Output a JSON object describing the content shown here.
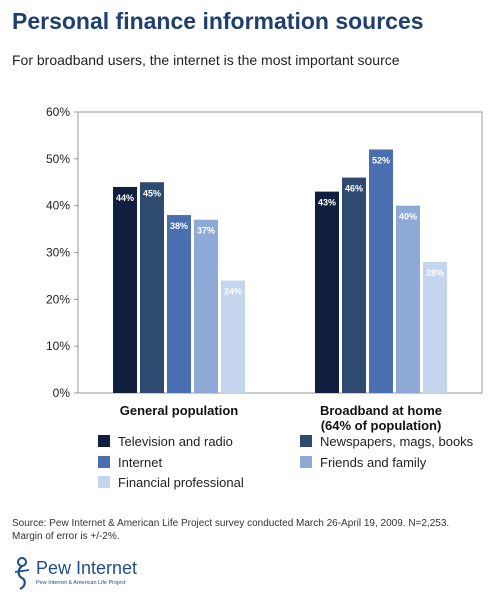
{
  "header": {
    "title": "Personal finance information sources",
    "subtitle": "For broadband users, the internet is the most important source"
  },
  "chart_data": {
    "type": "bar",
    "categories": [
      "General population",
      "Broadband at home (64% of population)"
    ],
    "category_lines": [
      [
        "General population"
      ],
      [
        "Broadband at home",
        "(64% of population)"
      ]
    ],
    "series": [
      {
        "name": "Television and radio",
        "values": [
          44,
          43
        ],
        "labels": [
          "44%",
          "43%"
        ],
        "color": "#0f1f3d"
      },
      {
        "name": "Newspapers, mags, books",
        "values": [
          45,
          46
        ],
        "labels": [
          "45%",
          "46%"
        ],
        "color": "#2e4a6e"
      },
      {
        "name": "Internet",
        "values": [
          38,
          52
        ],
        "labels": [
          "38%",
          "52%"
        ],
        "color": "#4a6fb0"
      },
      {
        "name": "Friends and family",
        "values": [
          37,
          40
        ],
        "labels": [
          "37%",
          "40%"
        ],
        "color": "#8fa9d6"
      },
      {
        "name": "Financial professional",
        "values": [
          24,
          28
        ],
        "labels": [
          "24%",
          "28%"
        ],
        "color": "#c5d5ee"
      }
    ],
    "ylim": [
      0,
      60
    ],
    "yticks": [
      0,
      10,
      20,
      30,
      40,
      50,
      60
    ],
    "ytick_labels": [
      "0%",
      "10%",
      "20%",
      "30%",
      "40%",
      "50%",
      "60%"
    ],
    "xlabel": "",
    "ylabel": "",
    "grid": false,
    "legend_position": "bottom",
    "legend": [
      "Television and radio",
      "Newspapers, mags, books",
      "Internet",
      "Friends and family",
      "Financial professional"
    ]
  },
  "source_note": "Source: Pew Internet & American Life Project survey conducted March 26-April 19, 2009. N=2,253. Margin of error is +/-2%.",
  "logo": {
    "wordmark": "Pew Internet",
    "tagline": "Pew Internet & American Life Project"
  }
}
